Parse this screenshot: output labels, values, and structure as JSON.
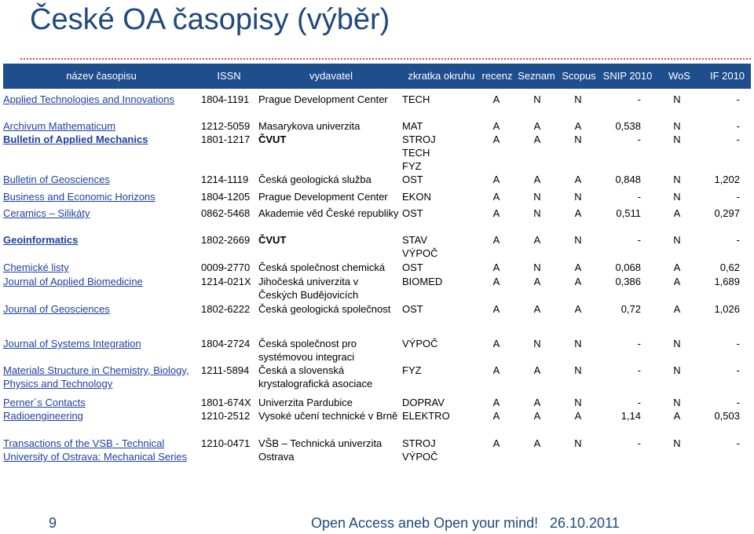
{
  "title": "České OA časopisy (výběr)",
  "headers": [
    "název časopisu",
    "ISSN",
    "vydavatel",
    "zkratka okruhu",
    "recenz",
    "Seznam",
    "Scopus",
    "SNIP 2010",
    "WoS",
    "IF 2010"
  ],
  "rows": [
    {
      "name": "Applied Technologies and Innovations",
      "issn": "1804-1191",
      "publisher": "Prague Development Center",
      "field": "TECH",
      "recenz": "A",
      "seznam": "N",
      "scopus": "N",
      "snip": "-",
      "wos": "N",
      "if": "-"
    },
    {
      "name": "Archivum Mathematicum",
      "issn": "1212-5059",
      "publisher": "Masarykova univerzita",
      "field": "MAT",
      "recenz": "A",
      "seznam": "A",
      "scopus": "A",
      "snip": "0,538",
      "wos": "N",
      "if": "-"
    },
    {
      "name": "Bulletin of Applied Mechanics",
      "issn": "1801-1217",
      "publisher": "ČVUT",
      "field": "STROJ\nTECH\nFYZ",
      "recenz": "A",
      "seznam": "A",
      "scopus": "N",
      "snip": "-",
      "wos": "N",
      "if": "-"
    },
    {
      "name": "Bulletin of Geosciences",
      "issn": "1214-1119",
      "publisher": "Česká geologická služba",
      "field": "OST",
      "recenz": "A",
      "seznam": "A",
      "scopus": "A",
      "snip": "0,848",
      "wos": "N",
      "if": "1,202"
    },
    {
      "name": "Business and Economic Horizons",
      "issn": "1804-1205",
      "publisher": "Prague Development Center",
      "field": "EKON",
      "recenz": "A",
      "seznam": "N",
      "scopus": "N",
      "snip": "-",
      "wos": "N",
      "if": "-"
    },
    {
      "name": "Ceramics – Silikáty",
      "issn": "0862-5468",
      "publisher": "Akademie věd České republiky",
      "field": "OST",
      "recenz": "A",
      "seznam": "N",
      "scopus": "A",
      "snip": "0,511",
      "wos": "A",
      "if": "0,297"
    },
    {
      "name": "Geoinformatics",
      "issn": "1802-2669",
      "publisher": "ČVUT",
      "field": "STAV\nVÝPOČ",
      "recenz": "A",
      "seznam": "A",
      "scopus": "N",
      "snip": "-",
      "wos": "N",
      "if": "-"
    },
    {
      "name": "Chemické listy",
      "issn": "0009-2770",
      "publisher": "Česká společnost chemická",
      "field": "OST",
      "recenz": "A",
      "seznam": "N",
      "scopus": "A",
      "snip": "0,068",
      "wos": "A",
      "if": "0,62"
    },
    {
      "name": "Journal of Applied Biomedicine",
      "issn": "1214-021X",
      "publisher": "Jihočeská univerzita v Českých Budějovicích",
      "field": "BIOMED",
      "recenz": "A",
      "seznam": "A",
      "scopus": "A",
      "snip": "0,386",
      "wos": "A",
      "if": "1,689"
    },
    {
      "name": "Journal of Geosciences",
      "issn": "1802-6222",
      "publisher": "Česká geologická společnost",
      "field": "OST",
      "recenz": "A",
      "seznam": "A",
      "scopus": "A",
      "snip": "0,72",
      "wos": "A",
      "if": "1,026"
    },
    {
      "name": "Journal of Systems Integration",
      "issn": "1804-2724",
      "publisher": "Česká společnost pro systémovou integraci",
      "field": "VÝPOČ",
      "recenz": "A",
      "seznam": "N",
      "scopus": "N",
      "snip": "-",
      "wos": "N",
      "if": "-"
    },
    {
      "name": "Materials Structure in Chemistry, Biology, Physics and Technology",
      "issn": "1211-5894",
      "publisher": "Česká a slovenská krystalografická asociace",
      "field": "FYZ",
      "recenz": "A",
      "seznam": "A",
      "scopus": "N",
      "snip": "-",
      "wos": "N",
      "if": "-"
    },
    {
      "name": "Perner´s Contacts",
      "issn": "1801-674X",
      "publisher": "Univerzita Pardubice",
      "field": "DOPRAV",
      "recenz": "A",
      "seznam": "A",
      "scopus": "N",
      "snip": "-",
      "wos": "N",
      "if": "-"
    },
    {
      "name": "Radioengineering",
      "issn": "1210-2512",
      "publisher": "Vysoké učení technické v Brně",
      "field": "ELEKTRO",
      "recenz": "A",
      "seznam": "A",
      "scopus": "A",
      "snip": "1,14",
      "wos": "A",
      "if": "0,503"
    },
    {
      "name": "Transactions of the VSB - Technical University of Ostrava: Mechanical Series",
      "issn": "1210-0471",
      "publisher": "VŠB – Technická univerzita Ostrava",
      "field": "STROJ\nVÝPOČ",
      "recenz": "A",
      "seznam": "A",
      "scopus": "N",
      "snip": "-",
      "wos": "N",
      "if": "-"
    }
  ],
  "footer": {
    "page": "9",
    "text": "Open Access aneb Open your mind!",
    "date": "26.10.2011"
  }
}
